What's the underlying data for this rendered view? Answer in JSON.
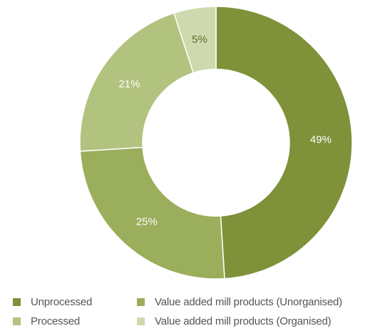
{
  "chart_data": {
    "type": "pie",
    "donut": true,
    "title": "",
    "categories": [
      "Unprocessed",
      "Value added mill products (Unorganised)",
      "Processed",
      "Value added mill products (Organised)"
    ],
    "values": [
      49,
      25,
      21,
      5
    ],
    "labels": [
      "49%",
      "25%",
      "21%",
      "5%"
    ],
    "colors": [
      "#7f9139",
      "#9bae5b",
      "#b2c27f",
      "#cfd9ae"
    ],
    "legend_placement": "bottom",
    "legend_order": [
      "Unprocessed",
      "Value added mill products (Unorganised)",
      "Processed",
      "Value added mill products (Organised)"
    ]
  }
}
